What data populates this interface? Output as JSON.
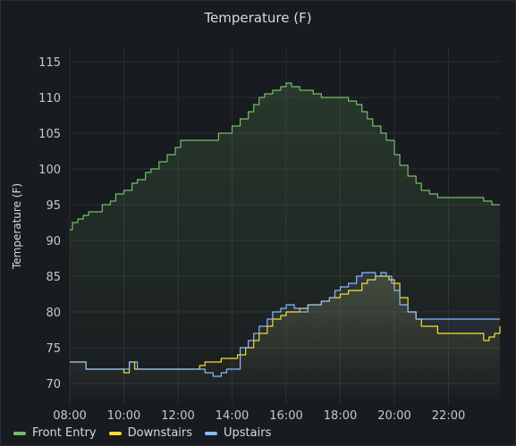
{
  "panel": {
    "title": "Temperature (F)"
  },
  "colors": {
    "front": "#73bf69",
    "down": "#fade2a",
    "up": "#8ab8ff",
    "grid": "#2a2d33"
  },
  "chart_data": {
    "type": "line",
    "title": "Temperature (F)",
    "ylabel": "Temperature (F)",
    "xlabel": "",
    "xlim": [
      8.0,
      23.9
    ],
    "ylim": [
      67,
      117
    ],
    "xticks": [
      "08:00",
      "10:00",
      "12:00",
      "14:00",
      "16:00",
      "18:00",
      "20:00",
      "22:00"
    ],
    "yticks": [
      70,
      75,
      80,
      85,
      90,
      95,
      100,
      105,
      110,
      115
    ],
    "legend": "bottom-left",
    "series": [
      {
        "name": "Front Entry",
        "color": "#73bf69",
        "x": [
          8.0,
          8.1,
          8.3,
          8.5,
          8.7,
          9.0,
          9.2,
          9.5,
          9.7,
          10.0,
          10.3,
          10.5,
          10.8,
          11.0,
          11.3,
          11.6,
          11.9,
          12.1,
          12.5,
          13.0,
          13.2,
          13.5,
          14.0,
          14.3,
          14.6,
          14.8,
          15.0,
          15.2,
          15.5,
          15.8,
          16.0,
          16.2,
          16.5,
          16.8,
          17.0,
          17.3,
          17.6,
          18.0,
          18.3,
          18.6,
          18.8,
          19.0,
          19.2,
          19.5,
          19.7,
          20.0,
          20.2,
          20.5,
          20.8,
          21.0,
          21.3,
          21.6,
          22.0,
          22.3,
          22.6,
          23.0,
          23.3,
          23.6,
          23.9
        ],
        "y": [
          91.5,
          92.5,
          93,
          93.5,
          94,
          94,
          95,
          95.5,
          96.5,
          97,
          98,
          98.5,
          99.5,
          100,
          101,
          102,
          103,
          104,
          104,
          104,
          104,
          105,
          106,
          107,
          108,
          109,
          110,
          110.5,
          111,
          111.5,
          112,
          111.5,
          111,
          111,
          110.5,
          110,
          110,
          110,
          109.5,
          109,
          108,
          107,
          106,
          105,
          104,
          102,
          100.5,
          99,
          98,
          97,
          96.5,
          96,
          96,
          96,
          96,
          96,
          95.5,
          95,
          95
        ]
      },
      {
        "name": "Downstairs",
        "color": "#fade2a",
        "x": [
          8.0,
          8.3,
          8.6,
          9.0,
          9.5,
          9.8,
          10.0,
          10.2,
          10.4,
          10.8,
          11.3,
          11.8,
          12.3,
          12.8,
          13.0,
          13.3,
          13.6,
          14.0,
          14.2,
          14.5,
          14.8,
          15.0,
          15.3,
          15.5,
          15.8,
          16.0,
          16.3,
          16.5,
          16.8,
          17.0,
          17.3,
          17.6,
          17.8,
          18.0,
          18.3,
          18.6,
          18.8,
          19.0,
          19.3,
          19.6,
          19.8,
          20.0,
          20.2,
          20.5,
          20.8,
          21.0,
          21.3,
          21.6,
          22.0,
          22.3,
          22.6,
          23.0,
          23.3,
          23.5,
          23.7,
          23.9
        ],
        "y": [
          73,
          73,
          72,
          72,
          72,
          72,
          71.5,
          73,
          72,
          72,
          72,
          72,
          72,
          72.5,
          73,
          73,
          73.5,
          73.5,
          74,
          75,
          76,
          77,
          78,
          79,
          79.5,
          80,
          80,
          80.5,
          81,
          81,
          81.5,
          82,
          82,
          82.5,
          83,
          83,
          84,
          84.5,
          85,
          85,
          84.5,
          84,
          82,
          80,
          79,
          78,
          78,
          77,
          77,
          77,
          77,
          77,
          76,
          76.5,
          77,
          78
        ]
      },
      {
        "name": "Upstairs",
        "color": "#8ab8ff",
        "x": [
          8.0,
          8.3,
          8.6,
          9.0,
          9.5,
          10.0,
          10.2,
          10.5,
          11.0,
          11.5,
          12.0,
          12.3,
          12.8,
          13.0,
          13.3,
          13.6,
          13.8,
          14.0,
          14.3,
          14.6,
          14.8,
          15.0,
          15.3,
          15.5,
          15.8,
          16.0,
          16.3,
          16.5,
          16.8,
          17.0,
          17.3,
          17.6,
          17.8,
          18.0,
          18.3,
          18.6,
          18.8,
          19.0,
          19.3,
          19.5,
          19.7,
          19.9,
          20.0,
          20.2,
          20.5,
          20.8,
          21.0,
          21.3,
          21.6,
          22.0,
          22.3,
          22.6,
          23.0,
          23.3,
          23.6,
          23.9
        ],
        "y": [
          73,
          73,
          72,
          72,
          72,
          72,
          73,
          72,
          72,
          72,
          72,
          72,
          72,
          71.5,
          71,
          71.5,
          72,
          72,
          75,
          76,
          77,
          78,
          79,
          80,
          80.5,
          81,
          80.5,
          80,
          81,
          81,
          81.5,
          82,
          83,
          83.5,
          84,
          85,
          85.5,
          85.5,
          85,
          85.5,
          85,
          84,
          83,
          81,
          80,
          79,
          79,
          79,
          79,
          79,
          79,
          79,
          79,
          79,
          79,
          79
        ]
      }
    ]
  }
}
